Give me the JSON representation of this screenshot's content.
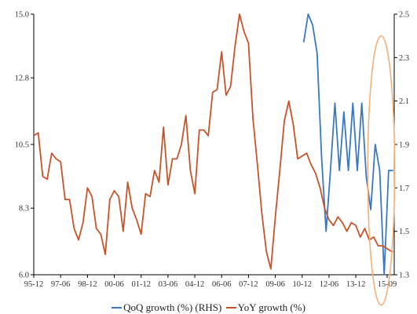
{
  "chart_data": {
    "type": "line",
    "x_tick_labels": [
      "95-12",
      "97-06",
      "98-12",
      "00-06",
      "01-12",
      "03-06",
      "04-12",
      "06-06",
      "07-12",
      "09-06",
      "10-12",
      "12-06",
      "13-12",
      "15-09"
    ],
    "x_range": [
      "95-12",
      "15-09"
    ],
    "y_left": {
      "lim": [
        6.0,
        15.0
      ],
      "ticks": [
        "6.0",
        "8.3",
        "10.5",
        "12.8",
        "15.0"
      ]
    },
    "y_right": {
      "lim": [
        1.3,
        2.5
      ],
      "ticks": [
        "1.3",
        "1.5",
        "1.7",
        "1.9",
        "2.1",
        "2.3",
        "2.5"
      ]
    },
    "series": [
      {
        "name": "QoQ growth (%) (RHS)",
        "axis": "right",
        "color": "#3a78c2",
        "points": [
          [
            "11-01",
            2.37
          ],
          [
            "11-04",
            2.5
          ],
          [
            "11-07",
            2.45
          ],
          [
            "11-10",
            2.32
          ],
          [
            "12-01",
            1.84
          ],
          [
            "12-04",
            1.5
          ],
          [
            "12-07",
            1.78
          ],
          [
            "12-10",
            2.09
          ],
          [
            "13-01",
            1.78
          ],
          [
            "13-04",
            2.05
          ],
          [
            "13-07",
            1.78
          ],
          [
            "13-10",
            2.09
          ],
          [
            "14-01",
            1.78
          ],
          [
            "14-04",
            2.09
          ],
          [
            "14-07",
            1.75
          ],
          [
            "14-10",
            1.6
          ],
          [
            "15-01",
            1.9
          ],
          [
            "15-04",
            1.78
          ],
          [
            "15-07",
            1.3
          ],
          [
            "15-10",
            1.78
          ],
          [
            "16-01",
            1.78
          ]
        ]
      },
      {
        "name": "YoY growth (%)",
        "axis": "left",
        "color": "#c6532a",
        "points": [
          [
            "95-12",
            10.8
          ],
          [
            "96-03",
            10.9
          ],
          [
            "96-06",
            9.4
          ],
          [
            "96-09",
            9.3
          ],
          [
            "96-12",
            10.2
          ],
          [
            "97-03",
            10.0
          ],
          [
            "97-06",
            9.9
          ],
          [
            "97-09",
            8.6
          ],
          [
            "97-12",
            8.6
          ],
          [
            "98-03",
            7.6
          ],
          [
            "98-06",
            7.2
          ],
          [
            "98-09",
            7.8
          ],
          [
            "98-12",
            9.0
          ],
          [
            "99-03",
            8.7
          ],
          [
            "99-06",
            7.6
          ],
          [
            "99-09",
            7.4
          ],
          [
            "99-12",
            6.7
          ],
          [
            "00-03",
            8.6
          ],
          [
            "00-06",
            8.9
          ],
          [
            "00-09",
            8.7
          ],
          [
            "00-12",
            7.5
          ],
          [
            "01-03",
            9.2
          ],
          [
            "01-06",
            8.3
          ],
          [
            "01-09",
            7.9
          ],
          [
            "01-12",
            7.4
          ],
          [
            "02-03",
            8.8
          ],
          [
            "02-06",
            8.7
          ],
          [
            "02-09",
            9.6
          ],
          [
            "02-12",
            9.2
          ],
          [
            "03-03",
            11.1
          ],
          [
            "03-06",
            9.1
          ],
          [
            "03-09",
            10.0
          ],
          [
            "03-12",
            10.0
          ],
          [
            "04-03",
            10.5
          ],
          [
            "04-06",
            11.5
          ],
          [
            "04-09",
            9.6
          ],
          [
            "04-12",
            8.8
          ],
          [
            "05-03",
            11.0
          ],
          [
            "05-06",
            11.0
          ],
          [
            "05-09",
            10.8
          ],
          [
            "05-12",
            12.3
          ],
          [
            "06-03",
            12.4
          ],
          [
            "06-06",
            13.7
          ],
          [
            "06-09",
            12.2
          ],
          [
            "06-12",
            12.5
          ],
          [
            "07-03",
            13.9
          ],
          [
            "07-06",
            15.0
          ],
          [
            "07-09",
            14.4
          ],
          [
            "07-12",
            14.0
          ],
          [
            "08-03",
            11.4
          ],
          [
            "08-06",
            9.8
          ],
          [
            "08-09",
            8.1
          ],
          [
            "08-12",
            6.8
          ],
          [
            "09-03",
            6.2
          ],
          [
            "09-06",
            8.0
          ],
          [
            "09-09",
            9.6
          ],
          [
            "09-12",
            11.3
          ],
          [
            "10-03",
            12.0
          ],
          [
            "10-06",
            11.2
          ],
          [
            "10-09",
            10.0
          ],
          [
            "10-12",
            10.1
          ],
          [
            "11-03",
            10.2
          ],
          [
            "11-06",
            9.8
          ],
          [
            "11-09",
            9.5
          ],
          [
            "11-12",
            9.0
          ],
          [
            "12-03",
            8.3
          ],
          [
            "12-06",
            7.9
          ],
          [
            "12-09",
            7.7
          ],
          [
            "12-12",
            8.0
          ],
          [
            "13-03",
            7.8
          ],
          [
            "13-06",
            7.5
          ],
          [
            "13-09",
            7.8
          ],
          [
            "13-12",
            7.7
          ],
          [
            "14-03",
            7.3
          ],
          [
            "14-06",
            7.6
          ],
          [
            "14-09",
            7.2
          ],
          [
            "14-12",
            7.3
          ],
          [
            "15-03",
            7.0
          ],
          [
            "15-06",
            7.0
          ],
          [
            "15-09",
            6.9
          ],
          [
            "15-12",
            6.8
          ],
          [
            "16-01",
            6.8
          ]
        ]
      }
    ],
    "annotation": {
      "shape": "ellipse",
      "color": "#f2b07a",
      "center": [
        "15-05",
        1.78
      ],
      "radius_months": 9,
      "radius_value": 0.62
    },
    "grid": false,
    "legend": "bottom"
  }
}
